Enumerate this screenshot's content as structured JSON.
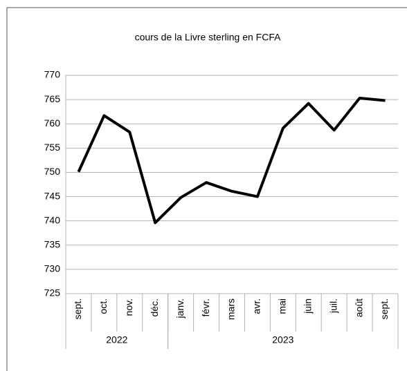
{
  "chart_data": {
    "type": "line",
    "title": "cours de la Livre sterling en FCFA",
    "categories": [
      "sept.",
      "oct.",
      "nov.",
      "déc.",
      "janv.",
      "févr.",
      "mars",
      "avr.",
      "mai",
      "juin",
      "juil.",
      "août",
      "sept."
    ],
    "category_groups": [
      {
        "name": "2022",
        "count": 4
      },
      {
        "name": "2023",
        "count": 9
      }
    ],
    "values": [
      750.1,
      761.7,
      758.3,
      739.6,
      744.8,
      747.9,
      746.1,
      745.0,
      759.1,
      764.2,
      758.7,
      765.3,
      764.8
    ],
    "color": "#000000",
    "ylim": [
      725,
      770
    ],
    "yticks": [
      725,
      730,
      735,
      740,
      745,
      750,
      755,
      760,
      765,
      770
    ],
    "grid": true
  }
}
